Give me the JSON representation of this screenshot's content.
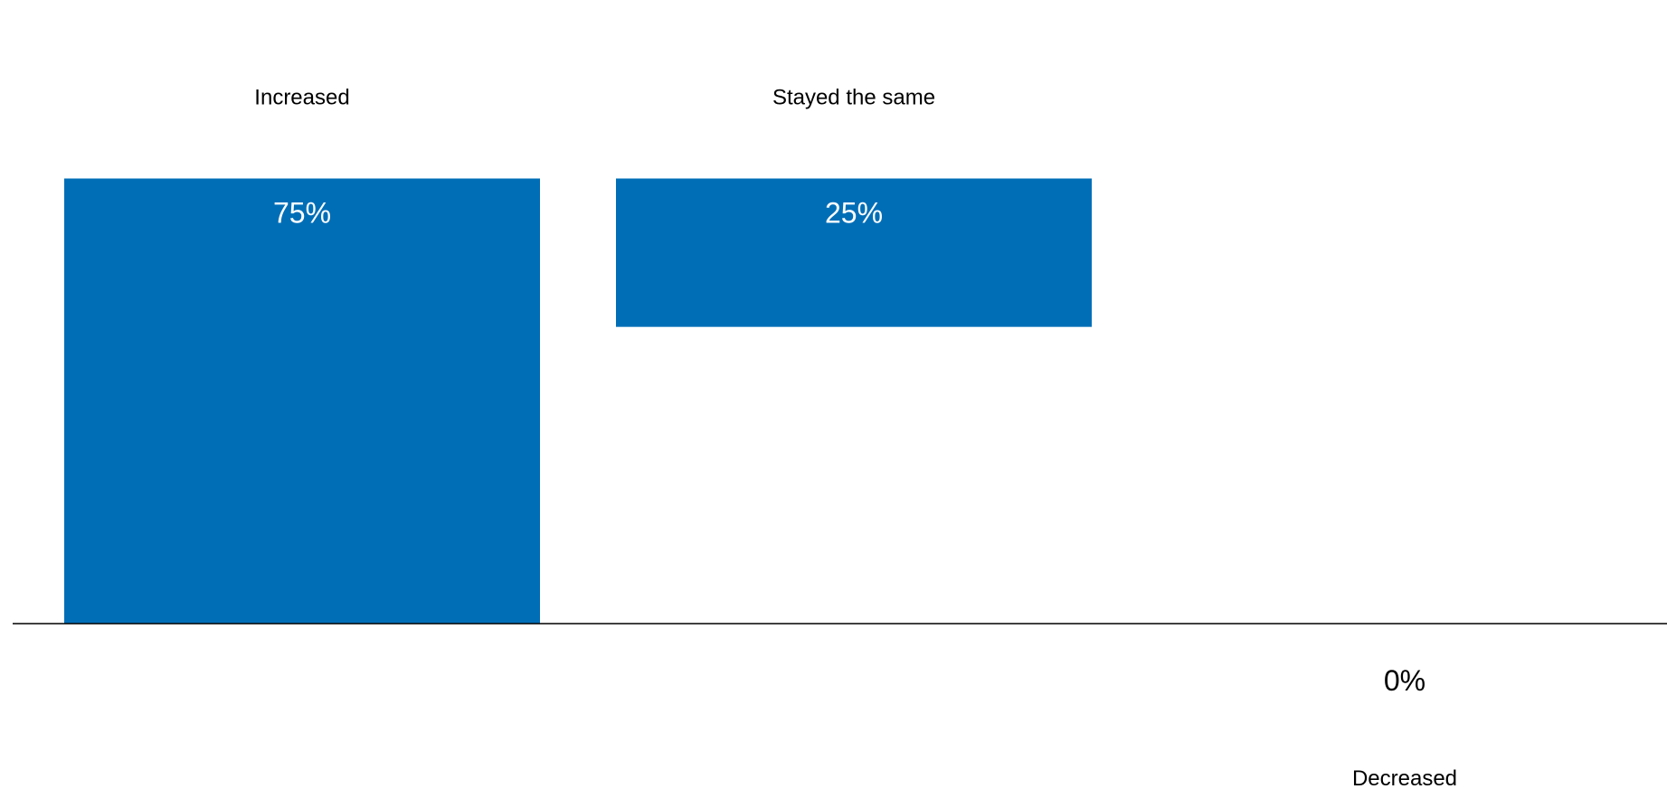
{
  "chart_data": {
    "type": "bar",
    "categories": [
      "Increased",
      "Stayed the same",
      "Decreased"
    ],
    "values": [
      75,
      25,
      0
    ],
    "value_labels": [
      "75%",
      "25%",
      "0%"
    ],
    "bar_color": "#006EB7",
    "label_inside_color": "#FFFFFF",
    "label_outside_color": "#000000",
    "axis_color": "#000000",
    "title": "",
    "xlabel": "",
    "ylabel": "",
    "grid": false,
    "legend": "none"
  }
}
